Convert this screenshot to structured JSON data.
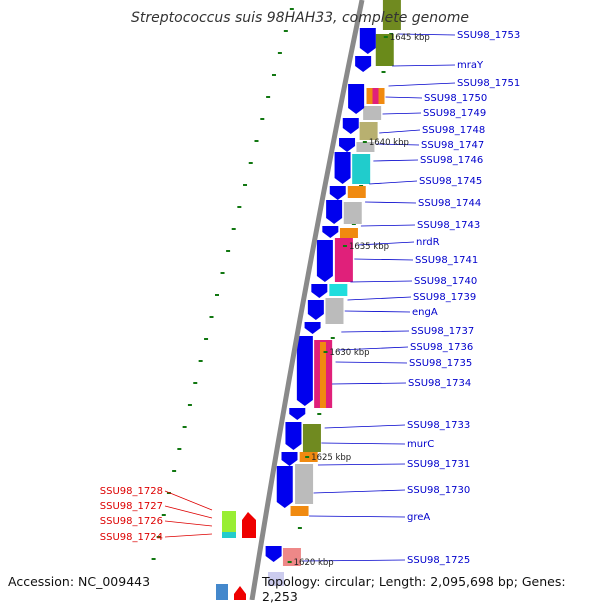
{
  "title": "Streptococcus suis 98HAH33, complete genome",
  "footer": {
    "accession": "Accession: NC_009443",
    "topology": "Topology: circular; Length: 2,095,698 bp; Genes: 2,253"
  },
  "colors": {
    "label_plus": "#0000cc",
    "label_minus": "#dd0000",
    "cds_forward": "#0000ee",
    "cds_reverse": "#ee0000",
    "backbone": "#888888",
    "ticks": "#117711"
  },
  "kbp_markers": [
    "1645 kbp",
    "1640 kbp",
    "1635 kbp",
    "1630 kbp",
    "1625 kbp",
    "1620 kbp"
  ],
  "labels_right": [
    "SSU98_1753",
    "mraY",
    "SSU98_1751",
    "SSU98_1750",
    "SSU98_1749",
    "SSU98_1748",
    "SSU98_1747",
    "SSU98_1746",
    "SSU98_1745",
    "SSU98_1744",
    "SSU98_1743",
    "nrdR",
    "SSU98_1741",
    "SSU98_1740",
    "SSU98_1739",
    "engA",
    "SSU98_1737",
    "SSU98_1736",
    "SSU98_1735",
    "SSU98_1734",
    "SSU98_1733",
    "murC",
    "SSU98_1731",
    "SSU98_1730",
    "greA",
    "SSU98_1725"
  ],
  "labels_left": [
    "SSU98_1728",
    "SSU98_1727",
    "SSU98_1726",
    "SSU98_1724"
  ]
}
